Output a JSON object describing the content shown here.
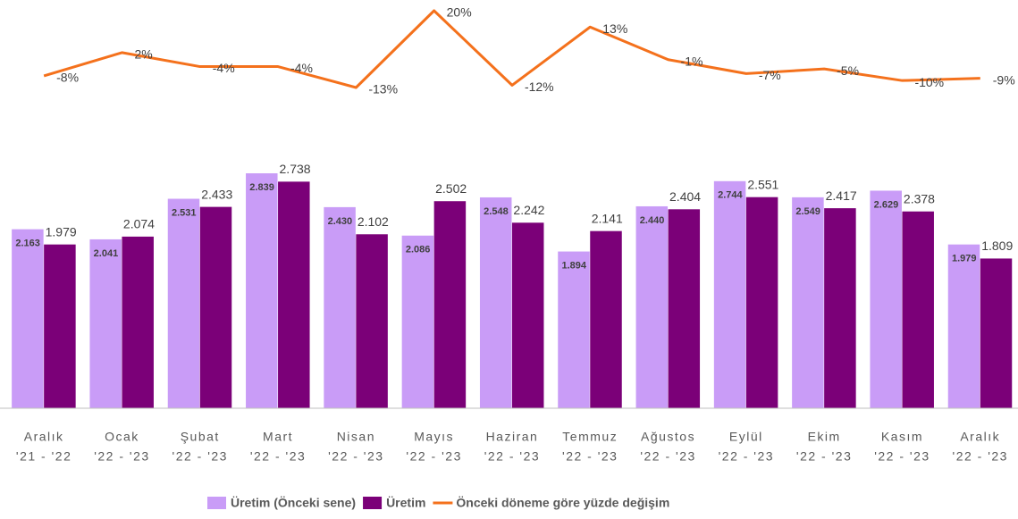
{
  "chart_data": {
    "type": "bar-line",
    "categories": [
      [
        "Aralık",
        "'21 - '22"
      ],
      [
        "Ocak",
        "'22 - '23"
      ],
      [
        "Şubat",
        "'22 - '23"
      ],
      [
        "Mart",
        "'22 - '23"
      ],
      [
        "Nisan",
        "'22 - '23"
      ],
      [
        "Mayıs",
        "'22 - '23"
      ],
      [
        "Haziran",
        "'22 - '23"
      ],
      [
        "Temmuz",
        "'22 - '23"
      ],
      [
        "Ağustos",
        "'22 - '23"
      ],
      [
        "Eylül",
        "'22 - '23"
      ],
      [
        "Ekim",
        "'22 - '23"
      ],
      [
        "Kasım",
        "'22 - '23"
      ],
      [
        "Aralık",
        "'22 - '23"
      ]
    ],
    "series": [
      {
        "name": "Üretim (Önceki sene)",
        "type": "bar",
        "color": "#c99cf7",
        "values": [
          2.163,
          2.041,
          2.531,
          2.839,
          2.43,
          2.086,
          2.548,
          1.894,
          2.44,
          2.744,
          2.549,
          2.629,
          1.979
        ],
        "value_labels": [
          "2.163",
          "2.041",
          "2.531",
          "2.839",
          "2.430",
          "2.086",
          "2.548",
          "1.894",
          "2.440",
          "2.744",
          "2.549",
          "2.629",
          "1.979"
        ]
      },
      {
        "name": "Üretim",
        "type": "bar",
        "color": "#7b0078",
        "values": [
          1.979,
          2.074,
          2.433,
          2.738,
          2.102,
          2.502,
          2.242,
          2.141,
          2.404,
          2.551,
          2.417,
          2.378,
          1.809
        ],
        "value_labels": [
          "1.979",
          "2.074",
          "2.433",
          "2.738",
          "2.102",
          "2.502",
          "2.242",
          "2.141",
          "2.404",
          "2.551",
          "2.417",
          "2.378",
          "1.809"
        ]
      },
      {
        "name": "Önceki döneme göre yüzde değişim",
        "type": "line",
        "color": "#f4711c",
        "values": [
          -8,
          2,
          -4,
          -4,
          -13,
          20,
          -12,
          13,
          -1,
          -7,
          -5,
          -10,
          -9
        ],
        "value_labels": [
          "-8%",
          "2%",
          "-4%",
          "-4%",
          "-13%",
          "20%",
          "-12%",
          "13%",
          "-1%",
          "-7%",
          "-5%",
          "-10%",
          "-9%"
        ]
      }
    ],
    "legend": "bottom"
  }
}
